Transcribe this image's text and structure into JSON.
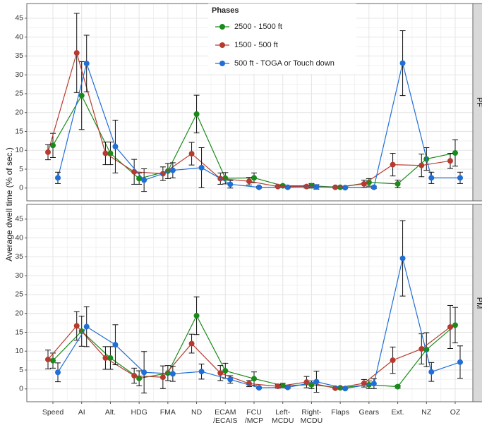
{
  "chart_data": [
    {
      "type": "line",
      "panel_label": "PF",
      "ylabel": "Average dwell time (% of sec.)",
      "legend_title": "Phases",
      "ylim": [
        -3.4,
        48.9
      ],
      "yticks": [
        0,
        5,
        10,
        15,
        20,
        25,
        30,
        35,
        40,
        45
      ],
      "grid": true,
      "series": [
        {
          "name": "2500 - 1500 ft",
          "color": "#1a8a1a",
          "values": [
            11.3,
            24.5,
            9.2,
            2.5,
            4.5,
            19.6,
            2.6,
            2.7,
            0.6,
            0.6,
            0.2,
            1.5,
            1.1,
            7.7,
            9.3
          ],
          "errors": [
            3.2,
            9,
            3,
            1.5,
            2,
            5,
            1.5,
            1.3,
            0.3,
            0.6,
            0.2,
            1,
            1,
            3,
            3.5
          ]
        },
        {
          "name": "1500 - 500 ft",
          "color": "#b83a2e",
          "values": [
            9.5,
            35.8,
            9.2,
            4.3,
            3.8,
            9.1,
            2.5,
            1.8,
            0.4,
            0.4,
            0.2,
            1.1,
            6.2,
            6,
            7.2
          ],
          "errors": [
            2,
            10.5,
            3,
            3.3,
            1.8,
            3,
            1.5,
            1,
            0.3,
            0.4,
            0.2,
            1,
            3,
            3,
            2
          ]
        },
        {
          "name": "500 ft - TOGA or Touch down",
          "color": "#1f6fd6",
          "values": [
            2.7,
            33,
            11,
            2.1,
            4.7,
            5.4,
            1,
            0.2,
            0.2,
            0.3,
            0.1,
            0.2,
            33.1,
            2.7,
            2.7
          ],
          "errors": [
            1.5,
            7.5,
            7,
            3,
            2,
            5.3,
            1,
            0.2,
            0.2,
            0.6,
            0.1,
            0.3,
            8.6,
            1.5,
            1.5
          ]
        }
      ]
    },
    {
      "type": "line",
      "panel_label": "PM",
      "categories": [
        "Speed",
        "AI",
        "Alt.",
        "HDG",
        "FMA",
        "ND",
        "ECAM\n/ECAIS",
        "FCU\n/MCP",
        "Left-\nMCDU",
        "Right-\nMCDU",
        "Flaps",
        "Gears",
        "Ext.",
        "NZ",
        "OZ"
      ],
      "ylim": [
        -3.4,
        48.9
      ],
      "yticks": [
        0,
        5,
        10,
        15,
        20,
        25,
        30,
        35,
        40,
        45
      ],
      "grid": true,
      "series": [
        {
          "color": "#1a8a1a",
          "values": [
            7.5,
            15.3,
            8.2,
            2.8,
            4.2,
            19.4,
            4.8,
            2.7,
            0.9,
            1.1,
            0.3,
            1.1,
            0.6,
            10.4,
            16.9
          ],
          "errors": [
            2,
            4,
            3,
            2,
            2,
            5,
            2,
            1.8,
            0.6,
            1,
            0.2,
            1,
            0.4,
            4.5,
            4.7
          ]
        },
        {
          "color": "#b83a2e",
          "values": [
            7.8,
            16.7,
            8.2,
            3.5,
            3.1,
            12,
            4.2,
            1.4,
            0.7,
            1.8,
            0.2,
            1.5,
            7.6,
            10.6,
            16.4
          ],
          "errors": [
            2.5,
            3.8,
            3,
            2,
            3,
            2.5,
            2,
            0.8,
            0.5,
            1.5,
            0.2,
            1,
            3.5,
            4,
            5.7
          ]
        },
        {
          "color": "#1f6fd6",
          "values": [
            4.4,
            16.5,
            11.7,
            4.4,
            4,
            4.6,
            2.5,
            0.3,
            0.4,
            1.9,
            0.1,
            1.4,
            34.6,
            4.5,
            7.1
          ],
          "errors": [
            2.5,
            5.3,
            5.3,
            5.5,
            2,
            2,
            1,
            0.2,
            0.3,
            2.8,
            0.1,
            1.3,
            10,
            2.5,
            4.3
          ]
        }
      ]
    }
  ]
}
